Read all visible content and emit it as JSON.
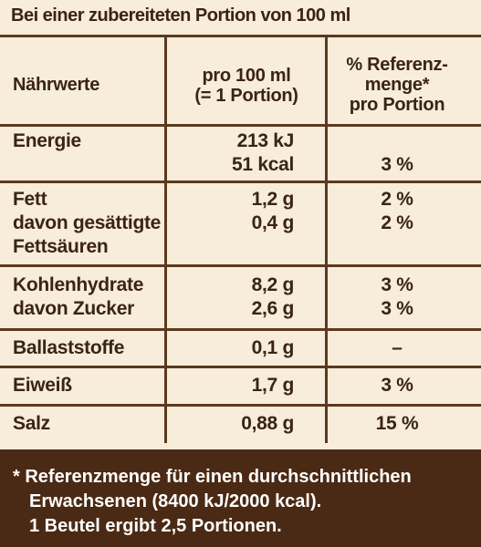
{
  "title": "Bei einer zubereiteten Portion von 100 ml",
  "header": {
    "col1": "Nährwerte",
    "col2_line1": "pro 100 ml",
    "col2_line2": "(= 1 Portion)",
    "col3_line1": "% Referenz-",
    "col3_line2": "menge*",
    "col3_line3": "pro Portion"
  },
  "rows": [
    {
      "c1": [
        "Energie",
        ""
      ],
      "c2": [
        "213 kJ",
        "51 kcal"
      ],
      "c3": [
        "",
        "3 %"
      ]
    },
    {
      "c1": [
        "Fett",
        "davon gesättigte",
        "Fettsäuren"
      ],
      "c2": [
        "1,2 g",
        "0,4 g",
        ""
      ],
      "c3": [
        "2 %",
        "2 %",
        ""
      ]
    },
    {
      "c1": [
        "Kohlenhydrate",
        "davon Zucker"
      ],
      "c2": [
        "8,2 g",
        "2,6 g"
      ],
      "c3": [
        "3 %",
        "3 %"
      ]
    },
    {
      "c1": [
        "Ballaststoffe"
      ],
      "c2": [
        "0,1 g"
      ],
      "c3": [
        "–"
      ]
    },
    {
      "c1": [
        "Eiweiß"
      ],
      "c2": [
        "1,7 g"
      ],
      "c3": [
        "3 %"
      ]
    },
    {
      "c1": [
        "Salz"
      ],
      "c2": [
        "0,88 g"
      ],
      "c3": [
        "15 %"
      ]
    }
  ],
  "footnote": {
    "line1": "* Referenzmenge für einen durchschnittlichen",
    "line2": "Erwachsenen (8400 kJ/2000 kcal).",
    "line3": "1 Beutel ergibt 2,5 Portionen."
  },
  "colors": {
    "background": "#f8ecda",
    "text": "#3a2412",
    "rule": "#5a3a1f",
    "footer": "#4a2a14"
  }
}
